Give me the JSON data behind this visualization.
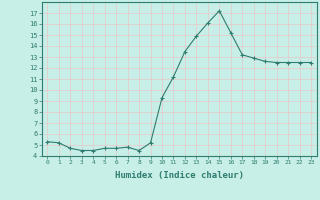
{
  "x": [
    0,
    1,
    2,
    3,
    4,
    5,
    6,
    7,
    8,
    9,
    10,
    11,
    12,
    13,
    14,
    15,
    16,
    17,
    18,
    19,
    20,
    21,
    22,
    23
  ],
  "y": [
    5.3,
    5.2,
    4.7,
    4.5,
    4.5,
    4.7,
    4.7,
    4.8,
    4.5,
    5.2,
    9.3,
    11.2,
    13.5,
    14.9,
    16.1,
    17.2,
    15.2,
    13.2,
    12.9,
    12.6,
    12.5,
    12.5,
    12.5,
    12.5
  ],
  "line_color": "#2e7d6e",
  "marker": "+",
  "marker_size": 3,
  "xlabel": "Humidex (Indice chaleur)",
  "bg_color": "#c8eee8",
  "grid_color": "#e8c8c8",
  "xlim": [
    -0.5,
    23.5
  ],
  "ylim": [
    4,
    18
  ],
  "yticks": [
    4,
    5,
    6,
    7,
    8,
    9,
    10,
    11,
    12,
    13,
    14,
    15,
    16,
    17
  ],
  "xticks": [
    0,
    1,
    2,
    3,
    4,
    5,
    6,
    7,
    8,
    9,
    10,
    11,
    12,
    13,
    14,
    15,
    16,
    17,
    18,
    19,
    20,
    21,
    22,
    23
  ],
  "axis_color": "#2e7d6e",
  "tick_color": "#2e7d6e",
  "label_color": "#2e7d6e",
  "xtick_fontsize": 4.5,
  "ytick_fontsize": 5.0,
  "xlabel_fontsize": 6.5
}
